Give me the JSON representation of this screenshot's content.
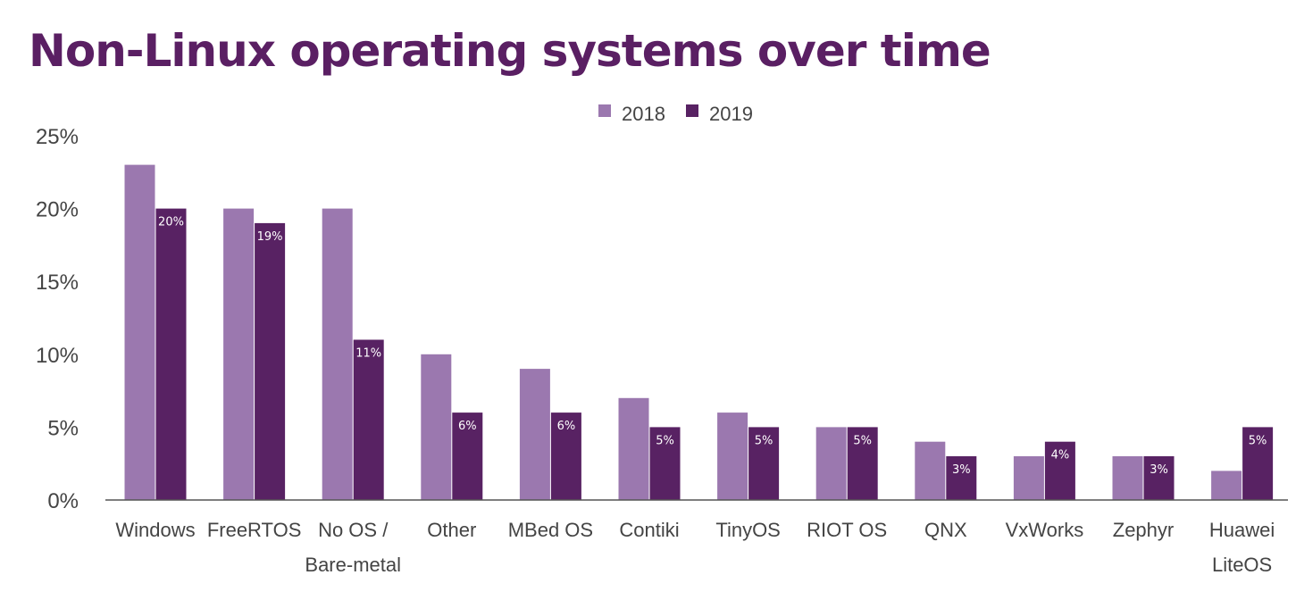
{
  "colors": {
    "series_2018": "#9b78af",
    "series_2019": "#582263",
    "title": "#5a1f63"
  },
  "chart_data": {
    "type": "bar",
    "title": "Non-Linux operating systems over time",
    "xlabel": "",
    "ylabel": "",
    "ylim": [
      0,
      25
    ],
    "yticks": [
      "0%",
      "5%",
      "10%",
      "15%",
      "20%",
      "25%"
    ],
    "legend_position": "top",
    "grid": false,
    "categories": [
      [
        "Windows"
      ],
      [
        "FreeRTOS"
      ],
      [
        "No OS /",
        "Bare-metal"
      ],
      [
        "Other"
      ],
      [
        "MBed OS"
      ],
      [
        "Contiki"
      ],
      [
        "TinyOS"
      ],
      [
        "RIOT OS"
      ],
      [
        "QNX"
      ],
      [
        "VxWorks"
      ],
      [
        "Zephyr"
      ],
      [
        "Huawei",
        "LiteOS"
      ]
    ],
    "series": [
      {
        "name": "2018",
        "values": [
          23,
          20,
          20,
          10,
          9,
          7,
          6,
          5,
          4,
          3,
          3,
          2
        ]
      },
      {
        "name": "2019",
        "values": [
          20,
          19,
          11,
          6,
          6,
          5,
          5,
          5,
          3,
          4,
          3,
          5
        ],
        "labels": [
          "20%",
          "19%",
          "11%",
          "6%",
          "6%",
          "5%",
          "5%",
          "5%",
          "3%",
          "4%",
          "3%",
          "5%"
        ]
      }
    ]
  }
}
